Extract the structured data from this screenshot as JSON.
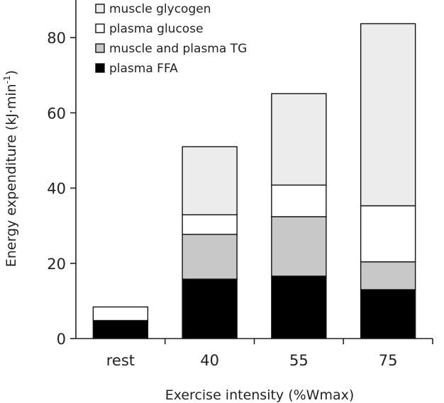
{
  "chart_data": {
    "type": "bar",
    "stacked": true,
    "categories": [
      "rest",
      "40",
      "55",
      "75"
    ],
    "series": [
      {
        "name": "plasma FFA",
        "values": [
          4.8,
          15.8,
          16.6,
          13.0
        ]
      },
      {
        "name": "muscle and plasma TG",
        "values": [
          0,
          11.9,
          15.8,
          7.4
        ]
      },
      {
        "name": "plasma glucose",
        "values": [
          3.6,
          5.2,
          8.4,
          14.9
        ]
      },
      {
        "name": "muscle glycogen",
        "values": [
          0,
          18.1,
          24.3,
          48.4
        ]
      }
    ],
    "legend_order": [
      "muscle glycogen",
      "plasma glucose",
      "muscle and plasma TG",
      "plasma FFA"
    ],
    "colors": {
      "plasma FFA": "#000000",
      "muscle and plasma TG": "#c8c8c8",
      "plasma glucose": "#ffffff",
      "muscle glycogen": "#ececec"
    },
    "xlabel": "Exercise intensity (%Wmax)",
    "ylabel_main": "Energy expenditure (kJ",
    "ylabel_dot": "·",
    "ylabel_min": "min",
    "ylabel_sup": "-1",
    "ylabel_close": ")",
    "ylim": [
      0,
      90
    ],
    "yticks": [
      0,
      20,
      40,
      60,
      80
    ],
    "legend_position": "top-left",
    "grid": false
  }
}
